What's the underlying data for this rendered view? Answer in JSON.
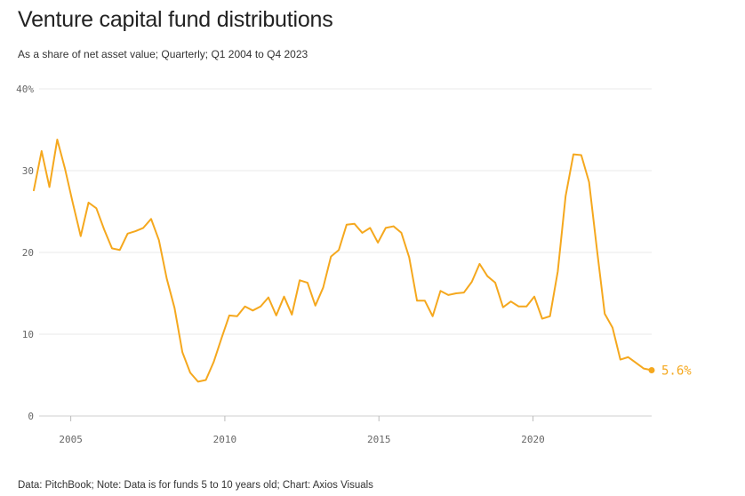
{
  "header": {
    "title": "Venture capital fund distributions",
    "subtitle": "As a share of net asset value; Quarterly; Q1 2004 to Q4 2023"
  },
  "footer": {
    "source": "Data: PitchBook; Note: Data is for funds 5 to 10 years old; Chart: Axios Visuals"
  },
  "chart_data": {
    "type": "line",
    "title": "Venture capital fund distributions",
    "subtitle": "As a share of net asset value; Quarterly; Q1 2004 to Q4 2023",
    "xlabel": "",
    "ylabel": "",
    "x_start": "Q1 2004",
    "frequency": "quarterly",
    "xlim": [
      2003.8,
      2023.85
    ],
    "ylim": [
      0,
      40
    ],
    "y_ticks": [
      0,
      10,
      20,
      30,
      40
    ],
    "y_tick_labels": [
      "0",
      "10",
      "20",
      "30",
      "40%"
    ],
    "x_ticks": [
      2005,
      2010,
      2015,
      2020
    ],
    "x_tick_labels": [
      "2005",
      "2010",
      "2015",
      "2020"
    ],
    "grid": true,
    "line_color": "#f5a81e",
    "series": [
      {
        "name": "",
        "values": [
          27.6,
          32.4,
          28.0,
          33.8,
          30.2,
          26.0,
          22.0,
          26.1,
          25.4,
          22.8,
          20.5,
          20.3,
          22.3,
          22.6,
          23.0,
          24.1,
          21.5,
          16.8,
          13.2,
          7.8,
          5.3,
          4.2,
          4.4,
          6.6,
          9.5,
          12.3,
          12.2,
          13.4,
          12.9,
          13.4,
          14.5,
          12.3,
          14.6,
          12.4,
          16.6,
          16.3,
          13.5,
          15.7,
          19.5,
          20.3,
          23.4,
          23.5,
          22.4,
          23.0,
          21.2,
          23.0,
          23.2,
          22.4,
          19.4,
          14.1,
          14.1,
          12.2,
          15.3,
          14.8,
          15.0,
          15.1,
          16.4,
          18.6,
          17.1,
          16.3,
          13.3,
          14.0,
          13.4,
          13.4,
          14.6,
          11.9,
          12.2,
          17.7,
          26.9,
          32.0,
          31.9,
          28.6,
          20.4,
          12.5,
          10.8,
          6.9,
          7.2,
          6.5,
          5.8,
          5.6
        ]
      }
    ],
    "end_label": "5.6%"
  }
}
